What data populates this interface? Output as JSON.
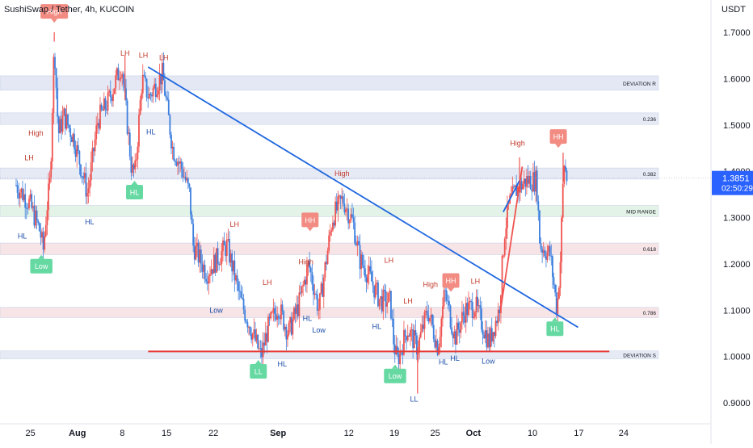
{
  "header": {
    "title": "SushiSwap / Tether, 4h, KUCOIN",
    "unit": "USDT"
  },
  "colors": {
    "up": "#ef5350",
    "down": "#3d7fdd",
    "trendline": "#1e66e0",
    "support": "#e53935",
    "label_red": "#c0392b",
    "label_blue": "#1e4fa8",
    "badge_red": "#f28b82",
    "badge_green": "#66d9a3",
    "price_tag": "#2962ff"
  },
  "chart_data": {
    "type": "candlestick",
    "title": "SushiSwap / Tether, 4h, KUCOIN",
    "ylabel": "USDT",
    "ylim": [
      0.84,
      1.78
    ],
    "xlim": [
      0,
      100
    ],
    "y_ticks": [
      "0.9000",
      "1.0000",
      "1.1000",
      "1.2000",
      "1.3000",
      "1.4000",
      "1.5000",
      "1.6000",
      "1.7000"
    ],
    "y_tick_values": [
      0.9,
      1.0,
      1.1,
      1.2,
      1.3,
      1.4,
      1.5,
      1.6,
      1.7
    ],
    "x_ticks": [
      {
        "t": 2.1,
        "label": "25",
        "bold": false
      },
      {
        "t": 9.0,
        "label": "Aug",
        "bold": true
      },
      {
        "t": 15.6,
        "label": "8",
        "bold": false
      },
      {
        "t": 22.1,
        "label": "15",
        "bold": false
      },
      {
        "t": 29.0,
        "label": "22",
        "bold": false
      },
      {
        "t": 38.5,
        "label": "Sep",
        "bold": true
      },
      {
        "t": 48.9,
        "label": "12",
        "bold": false
      },
      {
        "t": 55.6,
        "label": "19",
        "bold": false
      },
      {
        "t": 61.6,
        "label": "25",
        "bold": false
      },
      {
        "t": 67.2,
        "label": "Oct",
        "bold": true
      },
      {
        "t": 75.9,
        "label": "10",
        "bold": false
      },
      {
        "t": 82.7,
        "label": "17",
        "bold": false
      },
      {
        "t": 89.3,
        "label": "24",
        "bold": false
      }
    ],
    "current_price": "1.3851",
    "current_price_value": 1.3851,
    "countdown": "02:50:29",
    "path": [
      [
        0,
        1.37
      ],
      [
        2,
        1.33
      ],
      [
        3.5,
        1.27
      ],
      [
        4,
        1.23
      ],
      [
        4.5,
        1.32
      ],
      [
        5,
        1.38
      ],
      [
        5.6,
        1.68
      ],
      [
        6.2,
        1.48
      ],
      [
        7,
        1.52
      ],
      [
        8.5,
        1.47
      ],
      [
        10,
        1.38
      ],
      [
        10.5,
        1.35
      ],
      [
        12,
        1.51
      ],
      [
        13.5,
        1.55
      ],
      [
        15.5,
        1.63
      ],
      [
        17,
        1.4
      ],
      [
        17.5,
        1.4
      ],
      [
        18.5,
        1.6
      ],
      [
        19.5,
        1.56
      ],
      [
        21.5,
        1.61
      ],
      [
        23,
        1.45
      ],
      [
        24.5,
        1.4
      ],
      [
        25.5,
        1.35
      ],
      [
        26,
        1.24
      ],
      [
        28,
        1.18
      ],
      [
        31,
        1.24
      ],
      [
        33,
        1.12
      ],
      [
        34.5,
        1.06
      ],
      [
        36,
        1.0
      ],
      [
        37,
        1.06
      ],
      [
        38.5,
        1.11
      ],
      [
        40,
        1.05
      ],
      [
        41.5,
        1.11
      ],
      [
        43,
        1.2
      ],
      [
        44.5,
        1.1
      ],
      [
        45.5,
        1.2
      ],
      [
        46.5,
        1.3
      ],
      [
        48,
        1.34
      ],
      [
        49.5,
        1.29
      ],
      [
        50.5,
        1.21
      ],
      [
        52,
        1.17
      ],
      [
        53.5,
        1.12
      ],
      [
        55,
        1.12
      ],
      [
        55.5,
        1.03
      ],
      [
        56,
        0.99
      ],
      [
        57.5,
        1.06
      ],
      [
        59,
        1.02
      ],
      [
        60.5,
        1.1
      ],
      [
        62,
        1.02
      ],
      [
        63,
        1.14
      ],
      [
        64.5,
        1.04
      ],
      [
        66,
        1.1
      ],
      [
        67.5,
        1.11
      ],
      [
        69.5,
        1.03
      ],
      [
        71,
        1.1
      ],
      [
        71.8,
        1.27
      ],
      [
        72.5,
        1.33
      ],
      [
        73.5,
        1.36
      ],
      [
        75,
        1.38
      ],
      [
        76.5,
        1.38
      ],
      [
        77,
        1.24
      ],
      [
        78.5,
        1.22
      ],
      [
        79.5,
        1.1
      ],
      [
        80,
        1.21
      ],
      [
        80.5,
        1.42
      ],
      [
        81,
        1.38
      ]
    ],
    "spikes": [
      [
        5.6,
        1.7
      ],
      [
        16.0,
        1.65
      ],
      [
        59.0,
        0.92
      ],
      [
        74.0,
        1.43
      ],
      [
        80.4,
        1.44
      ]
    ],
    "zones": [
      {
        "label": "DEVIATION R",
        "y1": 1.575,
        "y2": 1.606,
        "fill": "#e3e8f4"
      },
      {
        "label": "0.236",
        "y1": 1.501,
        "y2": 1.526,
        "fill": "#e6eaf5"
      },
      {
        "label": "0.382",
        "y1": 1.383,
        "y2": 1.407,
        "fill": "#e6eaf5"
      },
      {
        "label": "MID RANGE",
        "y1": 1.302,
        "y2": 1.326,
        "fill": "#e4f3e7"
      },
      {
        "label": "0.618",
        "y1": 1.22,
        "y2": 1.245,
        "fill": "#f7e4e6"
      },
      {
        "label": "0.786",
        "y1": 1.084,
        "y2": 1.106,
        "fill": "#f7e4e6"
      },
      {
        "label": "DEVIATION S",
        "y1": 0.995,
        "y2": 1.012,
        "fill": "#e6eaf5"
      }
    ],
    "trendlines": [
      {
        "x1": 19.4,
        "y1": 1.625,
        "x2": 82.6,
        "y2": 1.063,
        "kind": "trendline"
      },
      {
        "x1": 71.6,
        "y1": 1.312,
        "x2": 74.0,
        "y2": 1.38,
        "kind": "trendline"
      },
      {
        "x1": 71.2,
        "y1": 1.1,
        "x2": 74.4,
        "y2": 1.41,
        "kind": "up"
      },
      {
        "x1": 19.4,
        "y1": 1.011,
        "x2": 87.2,
        "y2": 1.011,
        "kind": "support"
      }
    ],
    "labels": [
      {
        "text": "High",
        "t": 5.6,
        "y": 1.745,
        "kind": "badge",
        "color": "red"
      },
      {
        "text": "Low",
        "t": 3.7,
        "y": 1.195,
        "kind": "badge",
        "color": "green"
      },
      {
        "text": "HL",
        "t": 17.4,
        "y": 1.355,
        "kind": "badge",
        "color": "green"
      },
      {
        "text": "HH",
        "t": 43.2,
        "y": 1.295,
        "kind": "badge",
        "color": "red"
      },
      {
        "text": "LL",
        "t": 35.6,
        "y": 0.968,
        "kind": "badge",
        "color": "green"
      },
      {
        "text": "Low",
        "t": 55.7,
        "y": 0.958,
        "kind": "badge",
        "color": "green"
      },
      {
        "text": "HH",
        "t": 63.9,
        "y": 1.164,
        "kind": "badge",
        "color": "red"
      },
      {
        "text": "HH",
        "t": 79.7,
        "y": 1.475,
        "kind": "badge",
        "color": "red"
      },
      {
        "text": "HL",
        "t": 79.2,
        "y": 1.06,
        "kind": "badge",
        "color": "green"
      },
      {
        "text": "LH",
        "t": 16.0,
        "y": 1.655,
        "kind": "text",
        "color": "red"
      },
      {
        "text": "LH",
        "t": 18.7,
        "y": 1.65,
        "kind": "text",
        "color": "red"
      },
      {
        "text": "LH",
        "t": 21.7,
        "y": 1.645,
        "kind": "text",
        "color": "red"
      },
      {
        "text": "High",
        "t": 2.9,
        "y": 1.482,
        "kind": "text",
        "color": "red"
      },
      {
        "text": "LH",
        "t": 1.9,
        "y": 1.429,
        "kind": "text",
        "color": "red"
      },
      {
        "text": "HL",
        "t": 0.9,
        "y": 1.26,
        "kind": "text",
        "color": "blue"
      },
      {
        "text": "HL",
        "t": 10.8,
        "y": 1.29,
        "kind": "text",
        "color": "blue"
      },
      {
        "text": "HL",
        "t": 19.8,
        "y": 1.485,
        "kind": "text",
        "color": "blue"
      },
      {
        "text": "LH",
        "t": 32.1,
        "y": 1.285,
        "kind": "text",
        "color": "red"
      },
      {
        "text": "Low",
        "t": 29.4,
        "y": 1.1,
        "kind": "text",
        "color": "blue"
      },
      {
        "text": "LH",
        "t": 36.9,
        "y": 1.16,
        "kind": "text",
        "color": "red"
      },
      {
        "text": "HL",
        "t": 39.1,
        "y": 0.984,
        "kind": "text",
        "color": "blue"
      },
      {
        "text": "High",
        "t": 42.6,
        "y": 1.204,
        "kind": "text",
        "color": "red"
      },
      {
        "text": "HL",
        "t": 42.8,
        "y": 1.082,
        "kind": "text",
        "color": "blue"
      },
      {
        "text": "Low",
        "t": 44.5,
        "y": 1.057,
        "kind": "text",
        "color": "blue"
      },
      {
        "text": "High",
        "t": 47.9,
        "y": 1.395,
        "kind": "text",
        "color": "red"
      },
      {
        "text": "HL",
        "t": 53.0,
        "y": 1.065,
        "kind": "text",
        "color": "blue"
      },
      {
        "text": "LH",
        "t": 54.8,
        "y": 1.208,
        "kind": "text",
        "color": "red"
      },
      {
        "text": "LH",
        "t": 57.6,
        "y": 1.12,
        "kind": "text",
        "color": "red"
      },
      {
        "text": "LL",
        "t": 58.5,
        "y": 0.908,
        "kind": "text",
        "color": "blue"
      },
      {
        "text": "High",
        "t": 60.9,
        "y": 1.155,
        "kind": "text",
        "color": "red"
      },
      {
        "text": "HL",
        "t": 62.8,
        "y": 0.988,
        "kind": "text",
        "color": "blue"
      },
      {
        "text": "HL",
        "t": 64.5,
        "y": 0.996,
        "kind": "text",
        "color": "blue"
      },
      {
        "text": "LH",
        "t": 67.5,
        "y": 1.162,
        "kind": "text",
        "color": "red"
      },
      {
        "text": "Low",
        "t": 69.4,
        "y": 0.99,
        "kind": "text",
        "color": "blue"
      },
      {
        "text": "High",
        "t": 73.7,
        "y": 1.46,
        "kind": "text",
        "color": "red"
      }
    ]
  }
}
